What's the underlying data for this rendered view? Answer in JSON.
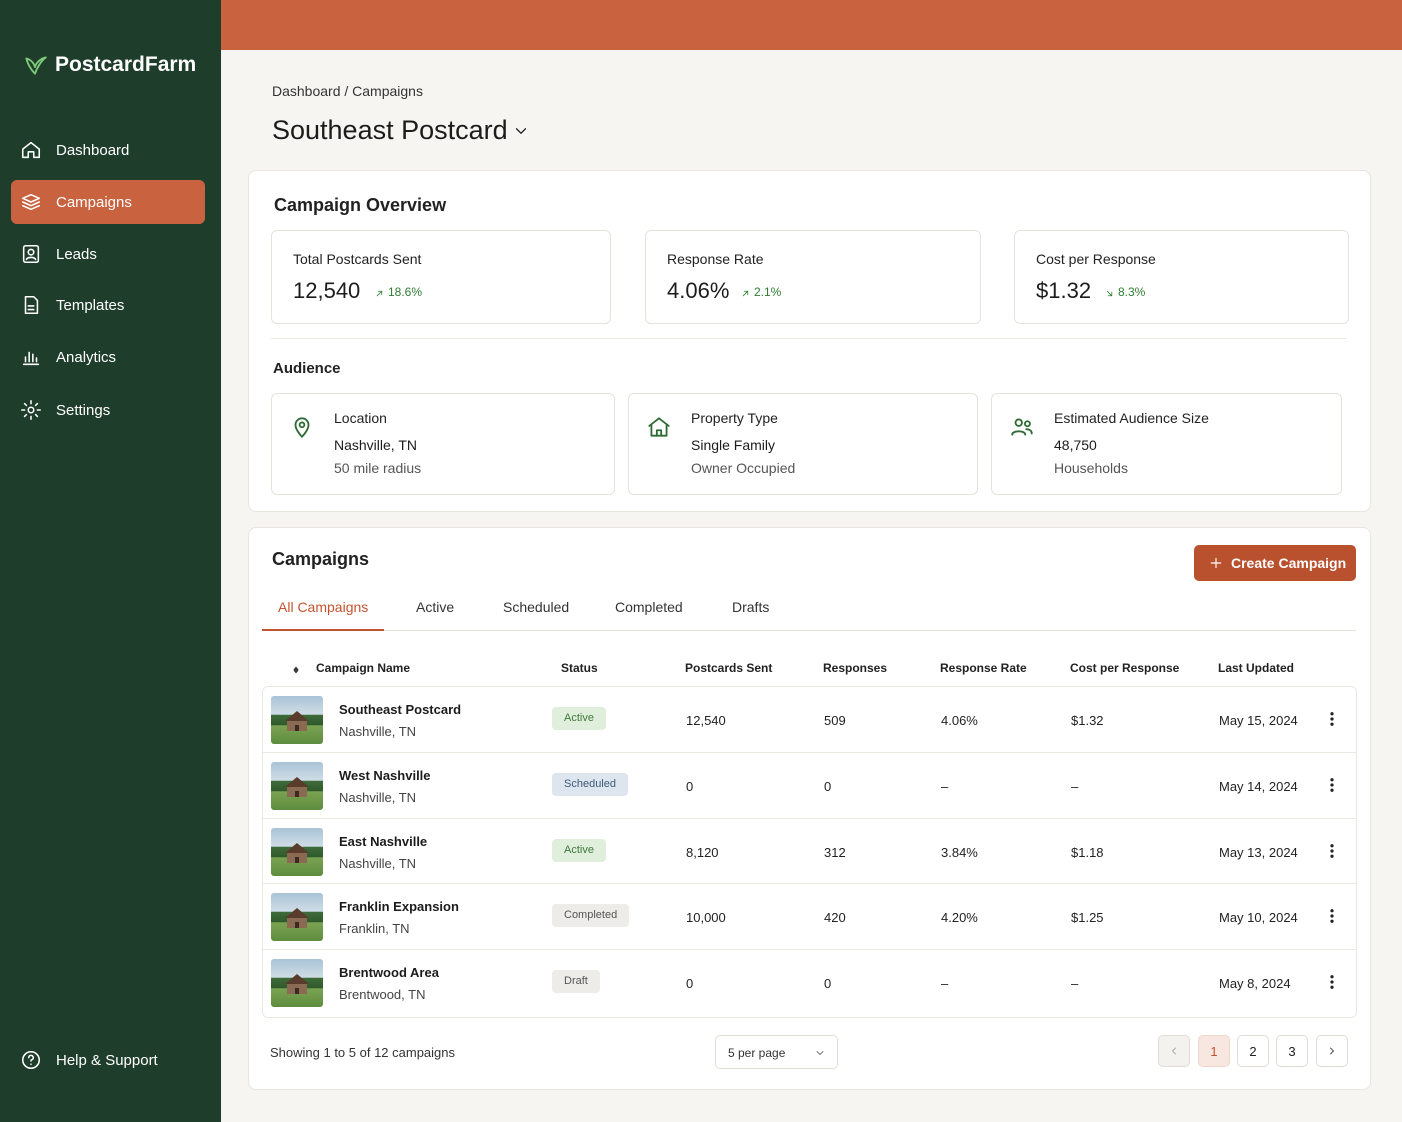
{
  "sidebar": {
    "brand": "PostcardFarm",
    "nav": [
      "Dashboard",
      "Campaigns",
      "Leads",
      "Templates",
      "Analytics",
      "Settings"
    ],
    "active": 1,
    "help": "Help & Support"
  },
  "header": {
    "breadcrumb": "Dashboard / Campaigns",
    "title": "Southeast Postcard"
  },
  "overview": {
    "title": "Campaign Overview",
    "metrics": [
      {
        "label": "Total Postcards Sent",
        "value": "12,540",
        "change": "18.6%",
        "direction": "up"
      },
      {
        "label": "Response Rate",
        "value": "4.06%",
        "change": "2.1%",
        "direction": "up"
      },
      {
        "label": "Cost per Response",
        "value": "$1.32",
        "change": "8.3%",
        "direction": "down"
      }
    ]
  },
  "audience": {
    "title": "Audience",
    "cards": [
      {
        "label": "Location",
        "value": "Nashville, TN",
        "sub": "50 mile radius"
      },
      {
        "label": "Property Type",
        "value": "Single Family",
        "sub": "Owner Occupied"
      },
      {
        "label": "Estimated Audience Size",
        "value": "48,750",
        "sub": "Households"
      }
    ]
  },
  "campaigns": {
    "title": "Campaigns",
    "button": "Create Campaign",
    "tabs": [
      "All Campaigns",
      "Active",
      "Scheduled",
      "Completed",
      "Drafts"
    ],
    "active_tab": 0,
    "columns": [
      "Campaign Name",
      "Status",
      "Postcards Sent",
      "Responses",
      "Response Rate",
      "Cost per Response",
      "Last Updated"
    ],
    "rows": [
      {
        "name": "Southeast Postcard",
        "location": "Nashville, TN",
        "status": "Active",
        "status_bg": "#e0efdc",
        "status_fg": "#3f7a3c",
        "sent": "12,540",
        "responses": "509",
        "rate": "4.06%",
        "cost": "$1.32",
        "updated": "May 15, 2024"
      },
      {
        "name": "West Nashville",
        "location": "Nashville, TN",
        "status": "Scheduled",
        "status_bg": "#dde6ef",
        "status_fg": "#3d5a78",
        "sent": "0",
        "responses": "0",
        "rate": "–",
        "cost": "–",
        "updated": "May 14, 2024"
      },
      {
        "name": "East Nashville",
        "location": "Nashville, TN",
        "status": "Active",
        "status_bg": "#e0efdc",
        "status_fg": "#3f7a3c",
        "sent": "8,120",
        "responses": "312",
        "rate": "3.84%",
        "cost": "$1.18",
        "updated": "May 13, 2024"
      },
      {
        "name": "Franklin Expansion",
        "location": "Franklin, TN",
        "status": "Completed",
        "status_bg": "#eeece8",
        "status_fg": "#555",
        "sent": "10,000",
        "responses": "420",
        "rate": "4.20%",
        "cost": "$1.25",
        "updated": "May 10, 2024"
      },
      {
        "name": "Brentwood Area",
        "location": "Brentwood, TN",
        "status": "Draft",
        "status_bg": "#eeece8",
        "status_fg": "#555",
        "sent": "0",
        "responses": "0",
        "rate": "–",
        "cost": "–",
        "updated": "May 8, 2024"
      }
    ],
    "footer": {
      "showing": "Showing 1 to 5 of 12 campaigns",
      "per_page": "5 per page",
      "pages": [
        "1",
        "2",
        "3"
      ],
      "current_page": 0
    }
  }
}
